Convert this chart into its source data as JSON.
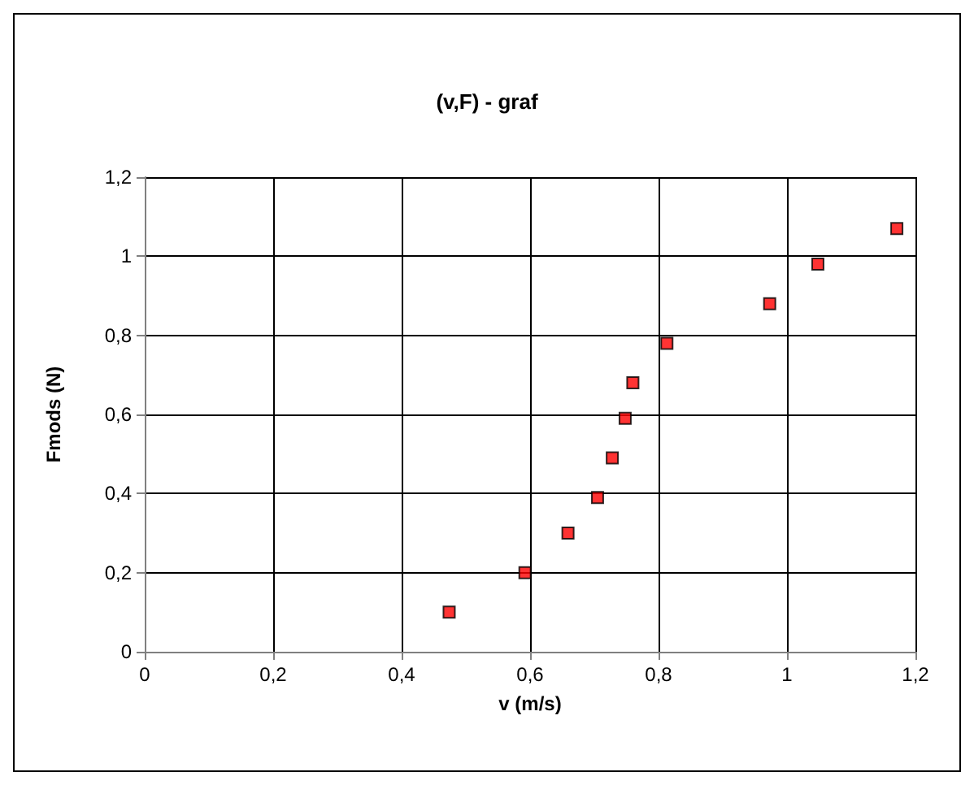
{
  "chart_data": {
    "type": "scatter",
    "title": "(v,F) - graf",
    "xlabel": "v (m/s)",
    "ylabel": "Fmods (N)",
    "x": [
      0.474,
      0.592,
      0.659,
      0.705,
      0.728,
      0.748,
      0.76,
      0.813,
      0.973,
      1.048,
      1.171
    ],
    "series": [
      {
        "color": "#ff0000",
        "values": [
          0.1,
          0.2,
          0.3,
          0.39,
          0.49,
          0.59,
          0.68,
          0.78,
          0.88,
          0.98,
          1.07
        ]
      }
    ],
    "xlim": [
      0,
      1.2
    ],
    "ylim": [
      0,
      1.2
    ],
    "xticks": [
      0,
      {
        "value": 0.2,
        "label": "0,2"
      },
      {
        "value": 0.4,
        "label": "0,4"
      },
      {
        "value": 0.6,
        "label": "0,6"
      },
      {
        "value": 0.8,
        "label": "0,8"
      },
      1,
      {
        "value": 1.2,
        "label": "1,2"
      }
    ],
    "yticks": [
      0,
      {
        "value": 0.2,
        "label": "0,2"
      },
      {
        "value": 0.4,
        "label": "0,4"
      },
      {
        "value": 0.6,
        "label": "0,6"
      },
      {
        "value": 0.8,
        "label": "0,8"
      },
      1,
      {
        "value": 1.2,
        "label": "1,2"
      }
    ],
    "grid": true,
    "marker": "square"
  }
}
